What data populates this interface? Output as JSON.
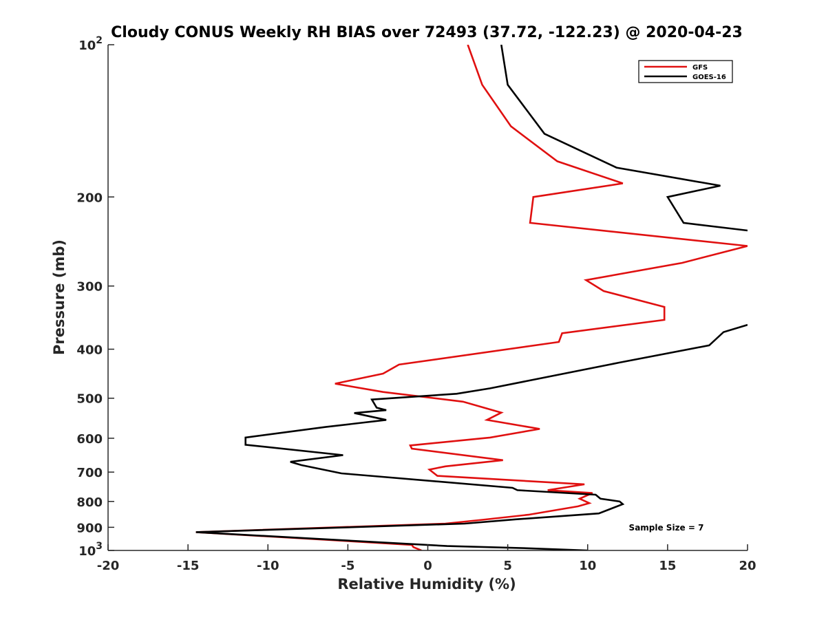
{
  "chart_data": {
    "type": "line",
    "title": "Cloudy CONUS Weekly RH BIAS over 72493 (37.72, -122.23) @ 2020-04-23",
    "xlabel": "Relative Humidity (%)",
    "ylabel": "Pressure (mb)",
    "xlim": [
      -20,
      20
    ],
    "ylim": [
      100,
      1000
    ],
    "y_scale": "log",
    "y_reversed": true,
    "grid": false,
    "legend_placement": "top-right",
    "x_ticks": [
      "-20",
      "-15",
      "-10",
      "-5",
      "0",
      "5",
      "10",
      "15",
      "20"
    ],
    "y_ticks": [
      {
        "value": 100,
        "base": "10",
        "exp": "2"
      },
      {
        "value": 200,
        "label": "200"
      },
      {
        "value": 300,
        "label": "300"
      },
      {
        "value": 400,
        "label": "400"
      },
      {
        "value": 500,
        "label": "500"
      },
      {
        "value": 600,
        "label": "600"
      },
      {
        "value": 700,
        "label": "700"
      },
      {
        "value": 800,
        "label": "800"
      },
      {
        "value": 900,
        "label": "900"
      },
      {
        "value": 1000,
        "base": "10",
        "exp": "3"
      }
    ],
    "annotation": "Sample Size = 7",
    "series": [
      {
        "name": "GFS",
        "color": "#e01010",
        "points": [
          [
            2.5,
            100
          ],
          [
            3.4,
            120
          ],
          [
            5.2,
            145
          ],
          [
            8.1,
            170
          ],
          [
            12.2,
            188
          ],
          [
            6.6,
            200
          ],
          [
            6.4,
            225
          ],
          [
            20.0,
            250
          ],
          [
            15.9,
            270
          ],
          [
            9.9,
            292
          ],
          [
            11.0,
            307
          ],
          [
            14.8,
            330
          ],
          [
            14.8,
            350
          ],
          [
            8.4,
            372
          ],
          [
            8.2,
            387
          ],
          [
            -1.8,
            429
          ],
          [
            -2.8,
            447
          ],
          [
            -5.8,
            468
          ],
          [
            -2.8,
            486
          ],
          [
            2.2,
            508
          ],
          [
            4.6,
            534
          ],
          [
            3.7,
            552
          ],
          [
            7.0,
            575
          ],
          [
            3.9,
            598
          ],
          [
            -1.1,
            620
          ],
          [
            -1.0,
            629
          ],
          [
            4.7,
            663
          ],
          [
            1.1,
            682
          ],
          [
            0.1,
            692
          ],
          [
            0.6,
            712
          ],
          [
            9.8,
            740
          ],
          [
            7.5,
            760
          ],
          [
            10.3,
            770
          ],
          [
            9.5,
            790
          ],
          [
            10.1,
            806
          ],
          [
            9.4,
            818
          ],
          [
            6.3,
            850
          ],
          [
            3.4,
            870
          ],
          [
            1.1,
            885
          ],
          [
            -14.5,
            920
          ],
          [
            -1.0,
            975
          ],
          [
            -0.9,
            985
          ],
          [
            -0.4,
            1000
          ]
        ]
      },
      {
        "name": "GOES-16",
        "color": "#000000",
        "points": [
          [
            4.6,
            100
          ],
          [
            5.0,
            120
          ],
          [
            7.3,
            150
          ],
          [
            11.8,
            175
          ],
          [
            18.3,
            190
          ],
          [
            15.0,
            200
          ],
          [
            16.0,
            225
          ],
          [
            20.0,
            233
          ],
          null,
          [
            20.0,
            358
          ],
          [
            18.5,
            370
          ],
          [
            17.6,
            393
          ],
          [
            12.0,
            425
          ],
          [
            3.9,
            478
          ],
          [
            1.8,
            490
          ],
          [
            -3.5,
            503
          ],
          [
            -3.2,
            522
          ],
          [
            -2.6,
            528
          ],
          [
            -4.6,
            535
          ],
          [
            -2.6,
            552
          ],
          [
            -6.4,
            570
          ],
          [
            -11.4,
            598
          ],
          [
            -11.4,
            618
          ],
          [
            -5.3,
            648
          ],
          [
            -8.6,
            668
          ],
          [
            -7.9,
            678
          ],
          [
            -5.4,
            704
          ],
          [
            5.3,
            752
          ],
          [
            5.6,
            760
          ],
          [
            10.5,
            776
          ],
          [
            10.8,
            790
          ],
          [
            12.0,
            800
          ],
          [
            12.2,
            810
          ],
          [
            10.7,
            845
          ],
          [
            5.5,
            868
          ],
          [
            2.3,
            885
          ],
          [
            -14.5,
            920
          ],
          [
            1.2,
            980
          ],
          [
            6.2,
            990
          ],
          [
            10.0,
            1000
          ]
        ]
      }
    ]
  }
}
